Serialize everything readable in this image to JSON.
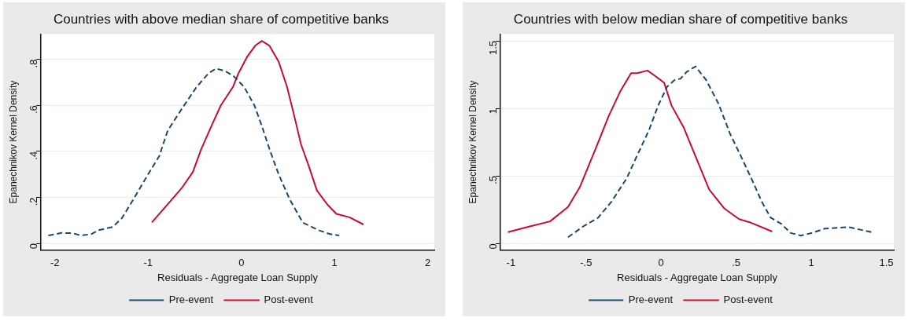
{
  "chart_data": [
    {
      "type": "line",
      "title": "Countries with above median share of competitive banks",
      "xlabel": "Residuals - Aggregate Loan Supply",
      "ylabel": "Epanechnikov Kernel Density",
      "xlim": [
        -2.15,
        2.07
      ],
      "ylim": [
        -0.03,
        0.91
      ],
      "xticks": [
        -2,
        -1,
        0,
        1,
        2
      ],
      "yticks": [
        {
          "value": 0,
          "label": "0"
        },
        {
          "value": 0.2,
          "label": ".2"
        },
        {
          "value": 0.4,
          "label": ".4"
        },
        {
          "value": 0.6,
          "label": ".6"
        },
        {
          "value": 0.8,
          "label": ".8"
        }
      ],
      "grid": "y",
      "legend": "bottom",
      "marker": "none",
      "series": [
        {
          "name": "Pre-event",
          "color": "#1a476f",
          "line_style": "dashed",
          "x": [
            -2.07,
            -1.93,
            -1.81,
            -1.72,
            -1.61,
            -1.53,
            -1.38,
            -1.28,
            -1.16,
            -1.0,
            -0.88,
            -0.79,
            -0.63,
            -0.48,
            -0.35,
            -0.27,
            -0.18,
            -0.09,
            0.03,
            0.14,
            0.22,
            0.31,
            0.4,
            0.52,
            0.66,
            0.83,
            0.95,
            1.05
          ],
          "values": [
            0.034,
            0.045,
            0.044,
            0.034,
            0.04,
            0.057,
            0.071,
            0.11,
            0.19,
            0.3,
            0.38,
            0.49,
            0.59,
            0.68,
            0.74,
            0.76,
            0.75,
            0.73,
            0.68,
            0.6,
            0.51,
            0.4,
            0.3,
            0.19,
            0.09,
            0.057,
            0.04,
            0.034
          ]
        },
        {
          "name": "Post-event",
          "color": "#c60c30",
          "line_style": "solid",
          "x": [
            -0.96,
            -0.8,
            -0.64,
            -0.52,
            -0.43,
            -0.31,
            -0.22,
            -0.09,
            -0.03,
            0.06,
            0.15,
            0.22,
            0.3,
            0.4,
            0.49,
            0.57,
            0.64,
            0.72,
            0.81,
            0.92,
            1.02,
            1.16,
            1.31
          ],
          "values": [
            0.091,
            0.165,
            0.24,
            0.31,
            0.41,
            0.52,
            0.6,
            0.68,
            0.74,
            0.81,
            0.86,
            0.88,
            0.86,
            0.79,
            0.68,
            0.55,
            0.43,
            0.34,
            0.23,
            0.17,
            0.128,
            0.113,
            0.082
          ]
        }
      ]
    },
    {
      "type": "line",
      "title": "Countries with below median share of competitive banks",
      "xlabel": "Residuals - Aggregate Loan Supply",
      "ylabel": "Epanechnikov Kernel Density",
      "xlim": [
        -1.07,
        1.55
      ],
      "ylim": [
        -0.05,
        1.55
      ],
      "xticks": [
        -1,
        {
          "value": -0.5,
          "label": "-.5"
        },
        0,
        {
          "value": 0.5,
          "label": ".5"
        },
        1,
        1.5
      ],
      "yticks": [
        0,
        {
          "value": 0.5,
          "label": ".5"
        },
        1,
        1.5
      ],
      "grid": "y",
      "legend": "bottom",
      "marker": "none",
      "series": [
        {
          "name": "Pre-event",
          "color": "#1a476f",
          "line_style": "dashed",
          "x": [
            -0.62,
            -0.52,
            -0.42,
            -0.33,
            -0.23,
            -0.16,
            -0.08,
            -0.02,
            0.04,
            0.09,
            0.13,
            0.17,
            0.23,
            0.3,
            0.38,
            0.46,
            0.53,
            0.61,
            0.67,
            0.73,
            0.8,
            0.86,
            0.93,
            1.01,
            1.09,
            1.25,
            1.4
          ],
          "values": [
            0.046,
            0.125,
            0.19,
            0.31,
            0.48,
            0.65,
            0.84,
            1.02,
            1.16,
            1.21,
            1.22,
            1.27,
            1.31,
            1.21,
            1.04,
            0.81,
            0.65,
            0.46,
            0.31,
            0.19,
            0.146,
            0.079,
            0.058,
            0.079,
            0.11,
            0.121,
            0.084
          ]
        },
        {
          "name": "Post-event",
          "color": "#c60c30",
          "line_style": "solid",
          "x": [
            -1.02,
            -0.88,
            -0.74,
            -0.62,
            -0.54,
            -0.44,
            -0.35,
            -0.27,
            -0.2,
            -0.16,
            -0.09,
            -0.04,
            0.02,
            0.07,
            0.15,
            0.22,
            0.32,
            0.42,
            0.52,
            0.59,
            0.74
          ],
          "values": [
            0.084,
            0.125,
            0.163,
            0.27,
            0.42,
            0.69,
            0.94,
            1.13,
            1.26,
            1.26,
            1.28,
            1.24,
            1.19,
            1.02,
            0.86,
            0.67,
            0.4,
            0.26,
            0.18,
            0.157,
            0.088
          ]
        }
      ]
    }
  ]
}
